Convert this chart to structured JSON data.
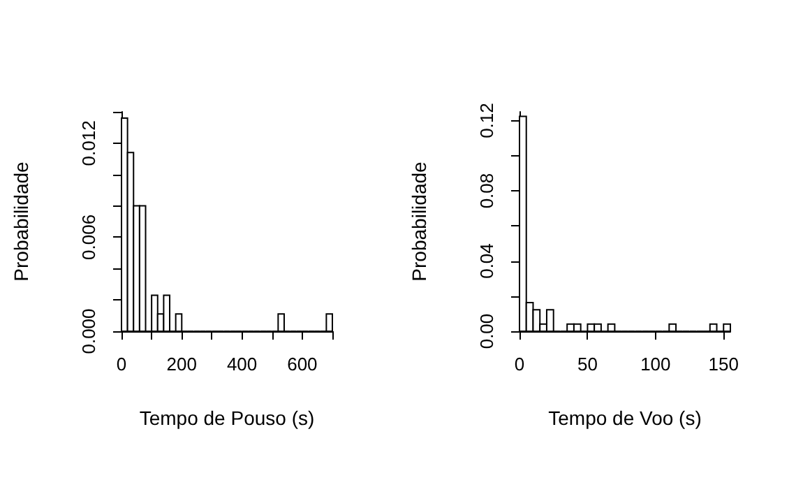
{
  "chart_data": [
    {
      "type": "histogram",
      "xlabel": "Tempo de Pouso (s)",
      "ylabel": "Probabilidade",
      "color": "#ffffff",
      "bins": [
        0,
        20,
        40,
        60,
        80,
        100,
        120,
        140,
        160,
        180,
        200,
        220,
        240,
        260,
        280,
        300,
        320,
        340,
        360,
        380,
        400,
        420,
        440,
        460,
        480,
        500,
        520,
        540,
        560,
        580,
        600,
        620,
        640,
        660,
        680,
        700
      ],
      "values": [
        0.0136,
        0.0114,
        0.008,
        0.008,
        0,
        0.0023,
        0.0011,
        0.0023,
        0,
        0.0011,
        0,
        0,
        0,
        0,
        0,
        0,
        0,
        0,
        0,
        0,
        0,
        0,
        0,
        0,
        0,
        0,
        0.0011,
        0,
        0,
        0,
        0,
        0,
        0,
        0,
        0.0011
      ],
      "xlim": [
        0,
        700
      ],
      "ylim": [
        0,
        0.014
      ],
      "xticks": [
        0,
        {
          "value": 100,
          "label": null
        },
        200,
        {
          "value": 300,
          "label": null
        },
        400,
        {
          "value": 500,
          "label": null
        },
        600,
        {
          "value": 700,
          "label": null
        }
      ],
      "yticks": [
        {
          "value": 0,
          "label": "0.000"
        },
        {
          "value": 0.002,
          "label": null
        },
        {
          "value": 0.004,
          "label": null
        },
        {
          "value": 0.006,
          "label": "0.006"
        },
        {
          "value": 0.008,
          "label": null
        },
        {
          "value": 0.01,
          "label": null
        },
        {
          "value": 0.012,
          "label": "0.012"
        },
        {
          "value": 0.014,
          "label": null
        }
      ]
    },
    {
      "type": "histogram",
      "xlabel": "Tempo de Voo (s)",
      "ylabel": "Probabilidade",
      "color": "#ffffff",
      "bins": [
        0,
        5,
        10,
        15,
        20,
        25,
        30,
        35,
        40,
        45,
        50,
        55,
        60,
        65,
        70,
        75,
        80,
        85,
        90,
        95,
        100,
        105,
        110,
        115,
        120,
        125,
        130,
        135,
        140,
        145,
        150,
        155
      ],
      "values": [
        0.1224,
        0.0163,
        0.0122,
        0.0041,
        0.0122,
        0,
        0,
        0.0041,
        0.0041,
        0,
        0.0041,
        0.0041,
        0,
        0.0041,
        0,
        0,
        0,
        0,
        0,
        0,
        0,
        0,
        0.0041,
        0,
        0,
        0,
        0,
        0,
        0.0041,
        0,
        0.0041
      ],
      "xlim": [
        0,
        155
      ],
      "ylim": [
        0,
        0.125
      ],
      "xticks": [
        0,
        50,
        100,
        150
      ],
      "yticks": [
        {
          "value": 0,
          "label": "0.00"
        },
        {
          "value": 0.02,
          "label": null
        },
        {
          "value": 0.04,
          "label": "0.04"
        },
        {
          "value": 0.06,
          "label": null
        },
        {
          "value": 0.08,
          "label": "0.08"
        },
        {
          "value": 0.1,
          "label": null
        },
        {
          "value": 0.12,
          "label": "0.12"
        }
      ]
    }
  ]
}
